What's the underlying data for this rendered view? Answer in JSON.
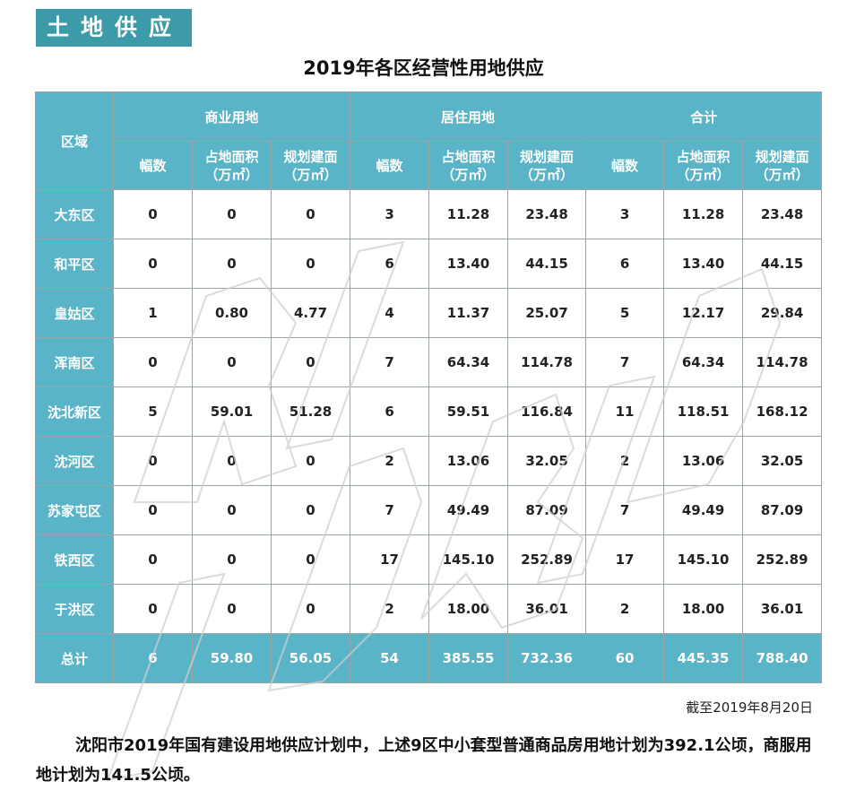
{
  "section_tag": "土地供应",
  "title": "2019年各区经营性用地供应",
  "header": {
    "district": "区域",
    "groups": [
      "商业用地",
      "居住用地",
      "合计"
    ],
    "sub": {
      "count": "幅数",
      "area_l1": "占地面积",
      "area_l2": "（万㎡）",
      "build_l1": "规划建面",
      "build_l2": "（万㎡）"
    }
  },
  "rows": [
    {
      "district": "大东区",
      "values": [
        "0",
        "0",
        "0",
        "3",
        "11.28",
        "23.48",
        "3",
        "11.28",
        "23.48"
      ]
    },
    {
      "district": "和平区",
      "values": [
        "0",
        "0",
        "0",
        "6",
        "13.40",
        "44.15",
        "6",
        "13.40",
        "44.15"
      ]
    },
    {
      "district": "皇姑区",
      "values": [
        "1",
        "0.80",
        "4.77",
        "4",
        "11.37",
        "25.07",
        "5",
        "12.17",
        "29.84"
      ]
    },
    {
      "district": "浑南区",
      "values": [
        "0",
        "0",
        "0",
        "7",
        "64.34",
        "114.78",
        "7",
        "64.34",
        "114.78"
      ]
    },
    {
      "district": "沈北新区",
      "values": [
        "5",
        "59.01",
        "51.28",
        "6",
        "59.51",
        "116.84",
        "11",
        "118.51",
        "168.12"
      ]
    },
    {
      "district": "沈河区",
      "values": [
        "0",
        "0",
        "0",
        "2",
        "13.06",
        "32.05",
        "2",
        "13.06",
        "32.05"
      ]
    },
    {
      "district": "苏家屯区",
      "values": [
        "0",
        "0",
        "0",
        "7",
        "49.49",
        "87.09",
        "7",
        "49.49",
        "87.09"
      ]
    },
    {
      "district": "铁西区",
      "values": [
        "0",
        "0",
        "0",
        "17",
        "145.10",
        "252.89",
        "17",
        "145.10",
        "252.89"
      ]
    },
    {
      "district": "于洪区",
      "values": [
        "0",
        "0",
        "0",
        "2",
        "18.00",
        "36.01",
        "2",
        "18.00",
        "36.01"
      ]
    }
  ],
  "total": {
    "label": "总计",
    "values": [
      "6",
      "59.80",
      "56.05",
      "54",
      "385.55",
      "732.36",
      "60",
      "445.35",
      "788.40"
    ]
  },
  "note": "截至2019年8月20日",
  "paragraph": "沈阳市2019年国有建设用地供应计划中，上述9区中小套型普通商品房用地计划为392.1公顷，商服用地计划为141.5公顷。",
  "colors": {
    "accent": "#58b4c6",
    "tag": "#3d9aa8"
  }
}
